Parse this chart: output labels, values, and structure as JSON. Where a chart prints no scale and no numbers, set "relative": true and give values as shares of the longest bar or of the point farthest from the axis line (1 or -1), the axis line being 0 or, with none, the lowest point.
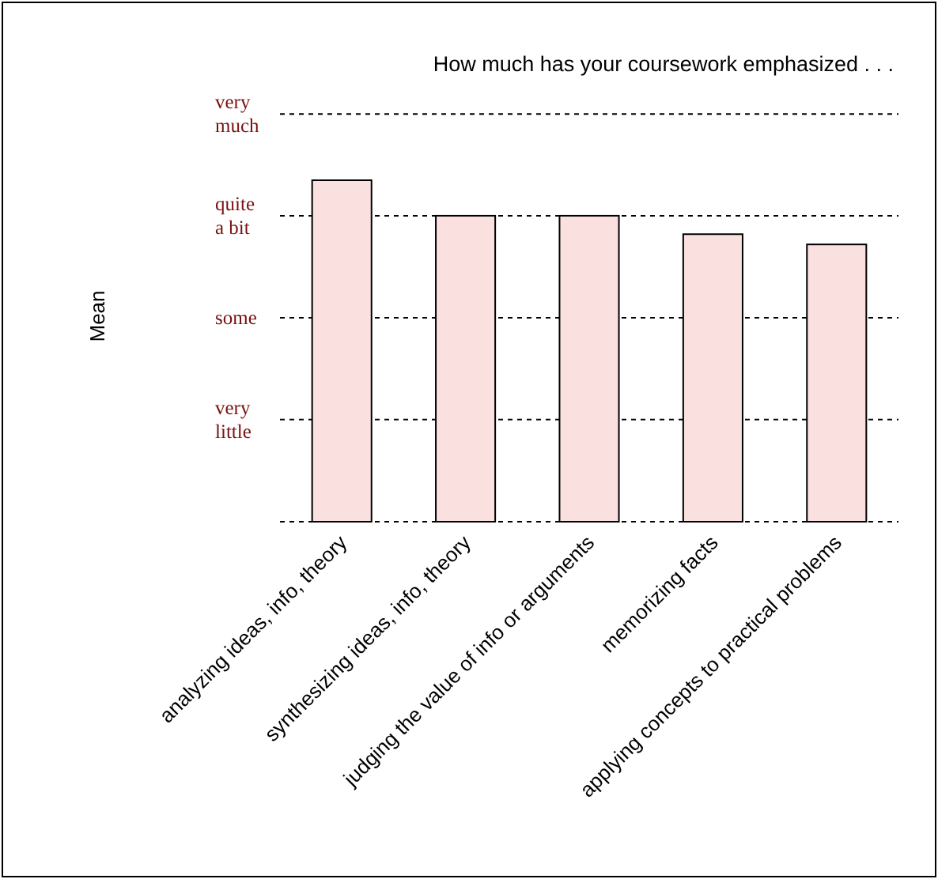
{
  "chart_data": {
    "type": "bar",
    "title": "How much has your coursework emphasized . . .",
    "ylabel": "Mean",
    "categories": [
      "analyzing ideas, info, theory",
      "synthesizing ideas, info, theory",
      "judging the value of info or arguments",
      "memorizing facts",
      "applying concepts to  practical problems"
    ],
    "values": [
      1,
      0.896,
      0.896,
      0.842,
      0.812
    ],
    "color": "#fbe0e0",
    "relative": true,
    "ref_lines": [
      {
        "axis": "y",
        "value": 0.299,
        "label": "very little",
        "line_style": "dashed"
      },
      {
        "axis": "y",
        "value": 0.597,
        "label": "some",
        "line_style": "dashed"
      },
      {
        "axis": "y",
        "value": 0.896,
        "label": "quite a bit",
        "line_style": "dashed"
      },
      {
        "axis": "y",
        "value": 1.194,
        "label": "very much",
        "line_style": "dashed"
      }
    ]
  }
}
